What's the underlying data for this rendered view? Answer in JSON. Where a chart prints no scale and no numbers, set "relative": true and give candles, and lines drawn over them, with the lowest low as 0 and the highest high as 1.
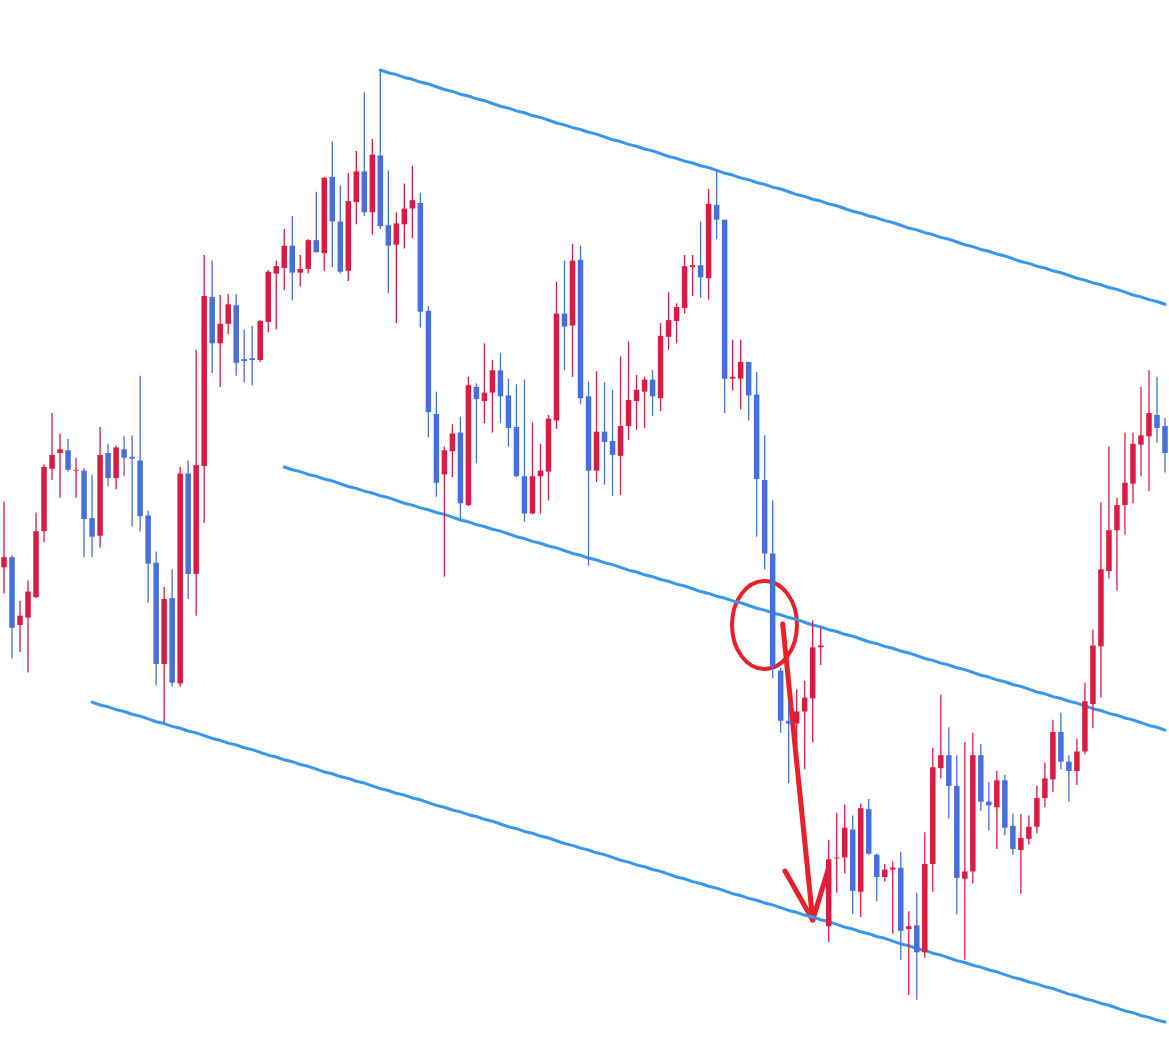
{
  "chart_data": {
    "type": "candlestick",
    "relative": true,
    "tick_labels": false,
    "categories": [
      null,
      null,
      null,
      null,
      null,
      null,
      null,
      null,
      null,
      null,
      null,
      null,
      null,
      null,
      null,
      null,
      null,
      null,
      null,
      null,
      null,
      null,
      null,
      null,
      null,
      null,
      null,
      null,
      null,
      null,
      null,
      null,
      null,
      null,
      null,
      null,
      null,
      null,
      null,
      null,
      null,
      null,
      null,
      null,
      null,
      null,
      null,
      null,
      null,
      null,
      null,
      null,
      null,
      null,
      null,
      null,
      null,
      null,
      null,
      null,
      null,
      null,
      null,
      null,
      null,
      null,
      null,
      null,
      null,
      null,
      null,
      null,
      null,
      null,
      null,
      null,
      null,
      null,
      null,
      null,
      null,
      null,
      null,
      null,
      null,
      null,
      null,
      null,
      null,
      null,
      null,
      null,
      null,
      null,
      null,
      null,
      null,
      null,
      null,
      null,
      null,
      null,
      null,
      null,
      null,
      null,
      null,
      null,
      null,
      null,
      null,
      null,
      null,
      null,
      null,
      null,
      null,
      null,
      null,
      null,
      null,
      null,
      null,
      null,
      null,
      null,
      null,
      null,
      null,
      null,
      null,
      null,
      null,
      null,
      null,
      null,
      null,
      null,
      null,
      null,
      null,
      null,
      null,
      null,
      null,
      null
    ],
    "ohlc": [
      [
        0.465,
        0.536,
        0.437,
        0.476
      ],
      [
        0.476,
        0.478,
        0.367,
        0.4
      ],
      [
        0.403,
        0.429,
        0.374,
        0.413
      ],
      [
        0.411,
        0.451,
        0.352,
        0.439
      ],
      [
        0.433,
        0.524,
        0.432,
        0.504
      ],
      [
        0.504,
        0.576,
        0.492,
        0.573
      ],
      [
        0.571,
        0.631,
        0.559,
        0.586
      ],
      [
        0.588,
        0.609,
        0.54,
        0.592
      ],
      [
        0.591,
        0.603,
        0.568,
        0.57
      ],
      [
        0.569,
        0.583,
        0.54,
        0.57
      ],
      [
        0.569,
        0.572,
        0.476,
        0.517
      ],
      [
        0.518,
        0.565,
        0.476,
        0.498
      ],
      [
        0.499,
        0.616,
        0.486,
        0.586
      ],
      [
        0.588,
        0.598,
        0.552,
        0.561
      ],
      [
        0.561,
        0.596,
        0.549,
        0.594
      ],
      [
        0.592,
        0.606,
        0.563,
        0.583
      ],
      [
        0.584,
        0.607,
        0.509,
        0.582
      ],
      [
        0.58,
        0.671,
        0.504,
        0.52
      ],
      [
        0.521,
        0.526,
        0.427,
        0.469
      ],
      [
        0.47,
        0.482,
        0.338,
        0.361
      ],
      [
        0.361,
        0.444,
        0.298,
        0.431
      ],
      [
        0.432,
        0.463,
        0.337,
        0.341
      ],
      [
        0.34,
        0.573,
        0.337,
        0.566
      ],
      [
        0.566,
        0.58,
        0.431,
        0.458
      ],
      [
        0.458,
        0.699,
        0.413,
        0.575
      ],
      [
        0.574,
        0.801,
        0.513,
        0.757
      ],
      [
        0.756,
        0.795,
        0.674,
        0.706
      ],
      [
        0.706,
        0.758,
        0.659,
        0.727
      ],
      [
        0.727,
        0.759,
        0.716,
        0.748
      ],
      [
        0.747,
        0.759,
        0.671,
        0.685
      ],
      [
        0.689,
        0.721,
        0.664,
        0.687
      ],
      [
        0.69,
        0.725,
        0.661,
        0.688
      ],
      [
        0.688,
        0.731,
        0.686,
        0.73
      ],
      [
        0.729,
        0.785,
        0.718,
        0.783
      ],
      [
        0.781,
        0.795,
        0.721,
        0.789
      ],
      [
        0.787,
        0.829,
        0.763,
        0.811
      ],
      [
        0.811,
        0.843,
        0.752,
        0.782
      ],
      [
        0.782,
        0.801,
        0.767,
        0.786
      ],
      [
        0.786,
        0.818,
        0.781,
        0.817
      ],
      [
        0.817,
        0.869,
        0.804,
        0.804
      ],
      [
        0.803,
        0.885,
        0.784,
        0.884
      ],
      [
        0.885,
        0.923,
        0.788,
        0.837
      ],
      [
        0.837,
        0.876,
        0.781,
        0.783
      ],
      [
        0.784,
        0.889,
        0.773,
        0.859
      ],
      [
        0.858,
        0.913,
        0.834,
        0.891
      ],
      [
        0.891,
        0.976,
        0.843,
        0.847
      ],
      [
        0.847,
        0.926,
        0.823,
        0.909
      ],
      [
        0.908,
        1,
        0.829,
        0.832
      ],
      [
        0.833,
        0.892,
        0.76,
        0.811
      ],
      [
        0.812,
        0.847,
        0.728,
        0.835
      ],
      [
        0.834,
        0.878,
        0.808,
        0.851
      ],
      [
        0.851,
        0.897,
        0.819,
        0.86
      ],
      [
        0.857,
        0.868,
        0.723,
        0.74
      ],
      [
        0.741,
        0.746,
        0.605,
        0.632
      ],
      [
        0.63,
        0.654,
        0.541,
        0.556
      ],
      [
        0.565,
        0.595,
        0.455,
        0.591
      ],
      [
        0.59,
        0.619,
        0.562,
        0.609
      ],
      [
        0.61,
        0.627,
        0.517,
        0.534
      ],
      [
        0.532,
        0.67,
        0.531,
        0.661
      ],
      [
        0.659,
        0.663,
        0.577,
        0.646
      ],
      [
        0.644,
        0.706,
        0.62,
        0.653
      ],
      [
        0.653,
        0.688,
        0.61,
        0.677
      ],
      [
        0.677,
        0.696,
        0.62,
        0.649
      ],
      [
        0.65,
        0.668,
        0.595,
        0.615
      ],
      [
        0.616,
        0.662,
        0.562,
        0.563
      ],
      [
        0.563,
        0.667,
        0.514,
        0.523
      ],
      [
        0.523,
        0.621,
        0.522,
        0.563
      ],
      [
        0.563,
        0.598,
        0.523,
        0.569
      ],
      [
        0.568,
        0.629,
        0.537,
        0.625
      ],
      [
        0.623,
        0.772,
        0.614,
        0.738
      ],
      [
        0.738,
        0.795,
        0.677,
        0.724
      ],
      [
        0.725,
        0.813,
        0.67,
        0.795
      ],
      [
        0.796,
        0.811,
        0.641,
        0.647
      ],
      [
        0.649,
        0.665,
        0.467,
        0.569
      ],
      [
        0.569,
        0.676,
        0.557,
        0.611
      ],
      [
        0.611,
        0.664,
        0.554,
        0.6
      ],
      [
        0.601,
        0.656,
        0.542,
        0.586
      ],
      [
        0.585,
        0.692,
        0.543,
        0.617
      ],
      [
        0.617,
        0.708,
        0.602,
        0.645
      ],
      [
        0.644,
        0.672,
        0.613,
        0.656
      ],
      [
        0.654,
        0.67,
        0.615,
        0.667
      ],
      [
        0.667,
        0.677,
        0.628,
        0.649
      ],
      [
        0.647,
        0.728,
        0.633,
        0.714
      ],
      [
        0.713,
        0.761,
        0.699,
        0.731
      ],
      [
        0.73,
        0.749,
        0.706,
        0.745
      ],
      [
        0.744,
        0.801,
        0.738,
        0.789
      ],
      [
        0.788,
        0.801,
        0.757,
        0.79
      ],
      [
        0.79,
        0.837,
        0.755,
        0.777
      ],
      [
        0.776,
        0.872,
        0.753,
        0.856
      ],
      [
        0.855,
        0.892,
        0.818,
        0.839
      ],
      [
        0.839,
        0.839,
        0.631,
        0.668
      ],
      [
        0.668,
        0.71,
        0.655,
        0.67
      ],
      [
        0.668,
        0.71,
        0.635,
        0.686
      ],
      [
        0.686,
        0.686,
        0.623,
        0.65
      ],
      [
        0.651,
        0.675,
        0.498,
        0.56
      ],
      [
        0.559,
        0.607,
        0.463,
        0.48
      ],
      [
        0.48,
        0.537,
        0.346,
        0.359
      ],
      [
        0.354,
        0.357,
        0.287,
        0.3
      ],
      [
        0.3,
        0.321,
        0.233,
        0.297
      ],
      [
        0.297,
        0.334,
        0.273,
        0.31
      ],
      [
        0.31,
        0.343,
        0.248,
        0.325
      ],
      [
        0.324,
        0.408,
        0.277,
        0.379
      ],
      [
        0.379,
        0.4,
        0.36,
        0.381
      ],
      [
        0.079,
        0.172,
        0.062,
        0.151
      ],
      [
        0.152,
        0.201,
        0.115,
        0.153
      ],
      [
        0.153,
        0.21,
        0.136,
        0.185
      ],
      [
        0.183,
        0.198,
        0.092,
        0.117
      ],
      [
        0.116,
        0.211,
        0.089,
        0.206
      ],
      [
        0.205,
        0.216,
        0.156,
        0.157
      ],
      [
        0.156,
        0.157,
        0.106,
        0.132
      ],
      [
        0.132,
        0.146,
        0.127,
        0.14
      ],
      [
        0.14,
        0.149,
        0.071,
        0.142
      ],
      [
        0.142,
        0.159,
        0.043,
        0.074
      ],
      [
        0.076,
        0.095,
        0.005,
        0.079
      ],
      [
        0.08,
        0.115,
        0,
        0.051
      ],
      [
        0.051,
        0.18,
        0.045,
        0.146
      ],
      [
        0.146,
        0.271,
        0.116,
        0.25
      ],
      [
        0.249,
        0.328,
        0.238,
        0.263
      ],
      [
        0.263,
        0.293,
        0.195,
        0.23
      ],
      [
        0.23,
        0.263,
        0.092,
        0.131
      ],
      [
        0.13,
        0.277,
        0.043,
        0.138
      ],
      [
        0.138,
        0.287,
        0.125,
        0.263
      ],
      [
        0.263,
        0.275,
        0.203,
        0.213
      ],
      [
        0.213,
        0.234,
        0.182,
        0.209
      ],
      [
        0.207,
        0.246,
        0.162,
        0.236
      ],
      [
        0.236,
        0.242,
        0.177,
        0.185
      ],
      [
        0.187,
        0.2,
        0.156,
        0.162
      ],
      [
        0.161,
        0.2,
        0.114,
        0.174
      ],
      [
        0.173,
        0.198,
        0.167,
        0.186
      ],
      [
        0.186,
        0.23,
        0.179,
        0.217
      ],
      [
        0.217,
        0.255,
        0.207,
        0.238
      ],
      [
        0.237,
        0.301,
        0.223,
        0.288
      ],
      [
        0.288,
        0.309,
        0.248,
        0.256
      ],
      [
        0.256,
        0.263,
        0.213,
        0.246
      ],
      [
        0.246,
        0.281,
        0.231,
        0.267
      ],
      [
        0.267,
        0.341,
        0.264,
        0.321
      ],
      [
        0.318,
        0.398,
        0.292,
        0.381
      ],
      [
        0.38,
        0.535,
        0.325,
        0.463
      ],
      [
        0.461,
        0.595,
        0.453,
        0.505
      ],
      [
        0.505,
        0.54,
        0.44,
        0.532
      ],
      [
        0.532,
        0.61,
        0.5,
        0.556
      ],
      [
        0.555,
        0.61,
        0.534,
        0.598
      ],
      [
        0.597,
        0.659,
        0.563,
        0.607
      ],
      [
        0.606,
        0.677,
        0.547,
        0.631
      ],
      [
        0.629,
        0.67,
        0.599,
        0.615
      ],
      [
        0.617,
        0.626,
        0.567,
        0.588
      ]
    ],
    "colors": [
      "#d81d45",
      "#4570d5",
      "#d81d45",
      "#d81d45",
      "#d81d45",
      "#d81d45",
      "#d81d45",
      "#d81d45",
      "#4570d5",
      "#d81d45",
      "#4570d5",
      "#4570d5",
      "#d81d45",
      "#4570d5",
      "#d81d45",
      "#4570d5",
      "#4570d5",
      "#4570d5",
      "#4570d5",
      "#4570d5",
      "#d81d45",
      "#4570d5",
      "#d81d45",
      "#4570d5",
      "#d81d45",
      "#d81d45",
      "#4570d5",
      "#d81d45",
      "#d81d45",
      "#4570d5",
      "#4570d5",
      "#4570d5",
      "#d81d45",
      "#d81d45",
      "#d81d45",
      "#d81d45",
      "#4570d5",
      "#d81d45",
      "#d81d45",
      "#4570d5",
      "#d81d45",
      "#4570d5",
      "#4570d5",
      "#d81d45",
      "#d81d45",
      "#4570d5",
      "#d81d45",
      "#4570d5",
      "#4570d5",
      "#d81d45",
      "#d81d45",
      "#d81d45",
      "#4570d5",
      "#4570d5",
      "#4570d5",
      "#d81d45",
      "#d81d45",
      "#4570d5",
      "#d81d45",
      "#4570d5",
      "#d81d45",
      "#d81d45",
      "#4570d5",
      "#4570d5",
      "#4570d5",
      "#4570d5",
      "#d81d45",
      "#d81d45",
      "#d81d45",
      "#d81d45",
      "#4570d5",
      "#d81d45",
      "#4570d5",
      "#4570d5",
      "#d81d45",
      "#4570d5",
      "#4570d5",
      "#d81d45",
      "#d81d45",
      "#d81d45",
      "#d81d45",
      "#4570d5",
      "#d81d45",
      "#d81d45",
      "#d81d45",
      "#d81d45",
      "#d81d45",
      "#4570d5",
      "#d81d45",
      "#4570d5",
      "#4570d5",
      "#d81d45",
      "#d81d45",
      "#4570d5",
      "#4570d5",
      "#4570d5",
      "#4570d5",
      "#4570d5",
      "#4570d5",
      "#d81d45",
      "#d81d45",
      "#d81d45",
      "#d81d45",
      "#d81d45",
      "#d81d45",
      "#d81d45",
      "#4570d5",
      "#d81d45",
      "#4570d5",
      "#4570d5",
      "#d81d45",
      "#d81d45",
      "#4570d5",
      "#d81d45",
      "#4570d5",
      "#d81d45",
      "#d81d45",
      "#d81d45",
      "#4570d5",
      "#4570d5",
      "#d81d45",
      "#d81d45",
      "#4570d5",
      "#4570d5",
      "#d81d45",
      "#4570d5",
      "#4570d5",
      "#d81d45",
      "#d81d45",
      "#d81d45",
      "#d81d45",
      "#d81d45",
      "#4570d5",
      "#4570d5",
      "#d81d45",
      "#d81d45",
      "#d81d45",
      "#d81d45",
      "#d81d45",
      "#d81d45",
      "#d81d45",
      "#d81d45",
      "#d81d45",
      "#d81d45",
      "#4570d5",
      "#4570d5"
    ],
    "series": [
      {
        "type": "line",
        "color": "#3a96e6",
        "values": [
          null,
          null,
          null,
          null,
          null,
          null,
          null,
          null,
          null,
          null,
          null,
          null,
          null,
          null,
          null,
          null,
          null,
          null,
          null,
          null,
          null,
          null,
          null,
          null,
          null,
          null,
          null,
          null,
          null,
          null,
          null,
          null,
          null,
          null,
          null,
          null,
          null,
          null,
          null,
          null,
          null,
          null,
          null,
          null,
          null,
          null,
          null,
          1,
          0.997,
          0.995,
          0.992,
          0.99,
          0.987,
          0.985,
          0.982,
          0.979,
          0.977,
          0.974,
          0.972,
          0.969,
          0.967,
          0.964,
          0.961,
          0.959,
          0.956,
          0.954,
          0.951,
          0.949,
          0.946,
          0.943,
          0.941,
          0.938,
          0.936,
          0.933,
          0.931,
          0.928,
          0.925,
          0.923,
          0.92,
          0.918,
          0.915,
          0.913,
          0.91,
          0.907,
          0.905,
          0.902,
          0.9,
          0.897,
          0.895,
          0.892,
          0.889,
          0.887,
          0.884,
          0.882,
          0.879,
          0.877,
          0.874,
          0.872,
          0.869,
          0.866,
          0.864,
          0.861,
          0.859,
          0.856,
          0.854,
          0.851,
          0.848,
          0.846,
          0.843,
          0.841,
          0.838,
          0.836,
          0.833,
          0.83,
          0.828,
          0.825,
          0.823,
          0.82,
          0.818,
          0.815,
          0.812,
          0.81,
          0.807,
          0.805,
          0.802,
          0.8,
          0.797,
          0.794,
          0.792,
          0.789,
          0.787,
          0.784,
          0.782,
          0.779,
          0.776,
          0.774,
          0.771,
          0.769,
          0.766,
          0.764,
          0.761,
          0.758,
          0.756,
          0.753,
          0.751,
          0.748
        ]
      },
      {
        "type": "line",
        "color": "#3a96e6",
        "values": [
          null,
          null,
          null,
          null,
          null,
          null,
          null,
          null,
          null,
          null,
          null,
          null,
          null,
          null,
          null,
          null,
          null,
          null,
          null,
          null,
          null,
          null,
          null,
          null,
          null,
          null,
          null,
          null,
          null,
          null,
          null,
          null,
          null,
          null,
          null,
          0.573,
          0.57,
          0.568,
          0.565,
          0.563,
          0.56,
          0.558,
          0.555,
          0.552,
          0.55,
          0.547,
          0.545,
          0.542,
          0.54,
          0.537,
          0.534,
          0.532,
          0.529,
          0.527,
          0.524,
          0.522,
          0.519,
          0.516,
          0.514,
          0.511,
          0.509,
          0.506,
          0.504,
          0.501,
          0.498,
          0.496,
          0.493,
          0.491,
          0.488,
          0.486,
          0.483,
          0.48,
          0.478,
          0.475,
          0.473,
          0.47,
          0.468,
          0.465,
          0.462,
          0.46,
          0.457,
          0.455,
          0.452,
          0.45,
          0.447,
          0.445,
          0.442,
          0.439,
          0.437,
          0.434,
          0.432,
          0.429,
          0.427,
          0.424,
          0.421,
          0.419,
          0.416,
          0.414,
          0.411,
          0.409,
          0.406,
          0.403,
          0.401,
          0.398,
          0.396,
          0.393,
          0.391,
          0.388,
          0.385,
          0.383,
          0.38,
          0.378,
          0.375,
          0.373,
          0.37,
          0.367,
          0.365,
          0.362,
          0.36,
          0.357,
          0.355,
          0.352,
          0.349,
          0.347,
          0.344,
          0.342,
          0.339,
          0.337,
          0.334,
          0.331,
          0.329,
          0.326,
          0.324,
          0.321,
          0.319,
          0.316,
          0.313,
          0.311,
          0.308,
          0.306,
          0.303,
          0.301,
          0.298,
          0.295,
          0.293,
          0.29
        ]
      },
      {
        "type": "line",
        "color": "#3a96e6",
        "values": [
          null,
          null,
          null,
          null,
          null,
          null,
          null,
          null,
          null,
          null,
          null,
          0.32,
          0.317,
          0.315,
          0.312,
          0.31,
          0.307,
          0.305,
          0.302,
          0.299,
          0.297,
          0.294,
          0.292,
          0.289,
          0.287,
          0.284,
          0.281,
          0.279,
          0.276,
          0.274,
          0.271,
          0.269,
          0.266,
          0.263,
          0.261,
          0.258,
          0.256,
          0.253,
          0.251,
          0.248,
          0.245,
          0.243,
          0.24,
          0.238,
          0.235,
          0.233,
          0.23,
          0.227,
          0.225,
          0.222,
          0.22,
          0.217,
          0.215,
          0.212,
          0.209,
          0.207,
          0.204,
          0.202,
          0.199,
          0.197,
          0.194,
          0.192,
          0.189,
          0.186,
          0.184,
          0.181,
          0.179,
          0.176,
          0.174,
          0.171,
          0.168,
          0.166,
          0.163,
          0.161,
          0.158,
          0.156,
          0.153,
          0.15,
          0.148,
          0.145,
          0.143,
          0.14,
          0.138,
          0.135,
          0.132,
          0.13,
          0.127,
          0.125,
          0.122,
          0.12,
          0.117,
          0.114,
          0.112,
          0.109,
          0.107,
          0.104,
          0.102,
          0.099,
          0.096,
          0.094,
          0.091,
          0.089,
          0.086,
          0.084,
          0.081,
          0.078,
          0.076,
          0.073,
          0.071,
          0.068,
          0.066,
          0.063,
          0.06,
          0.058,
          0.055,
          0.053,
          0.05,
          0.048,
          0.045,
          0.042,
          0.04,
          0.037,
          0.035,
          0.032,
          0.03,
          0.027,
          0.024,
          0.022,
          0.019,
          0.017,
          0.014,
          0.012,
          0.009,
          0.006,
          0.004,
          0.001,
          -0.001,
          -0.004,
          -0.006,
          -0.009,
          -0.012,
          -0.014,
          -0.017,
          -0.019,
          -0.022,
          -0.024
        ]
      }
    ]
  }
}
